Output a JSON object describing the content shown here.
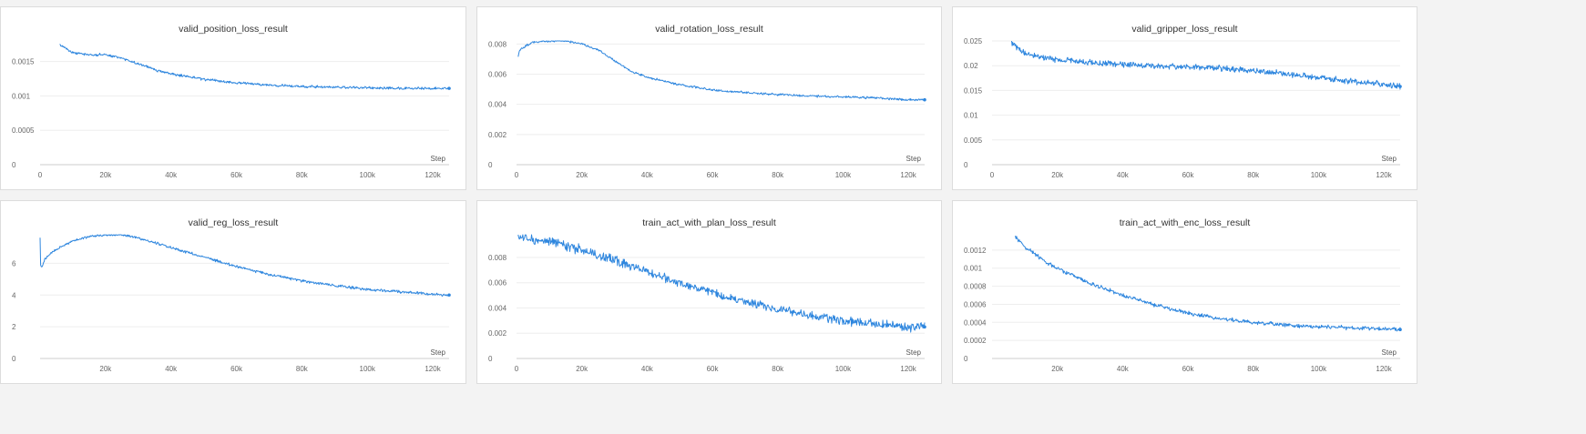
{
  "colors": {
    "line": "#2e86de",
    "grid": "#eeeeee",
    "axis": "#cccccc"
  },
  "chart_data": [
    {
      "type": "line",
      "title": "valid_position_loss_result",
      "xlabel": "Step",
      "xlim": [
        0,
        125000
      ],
      "ylim": [
        0,
        0.0018
      ],
      "xticks": [
        0,
        20000,
        40000,
        60000,
        80000,
        100000,
        120000
      ],
      "xtick_labels": [
        "0",
        "20k",
        "40k",
        "60k",
        "80k",
        "100k",
        "120k"
      ],
      "yticks": [
        0,
        0.0005,
        0.001,
        0.0015
      ],
      "ytick_labels": [
        "0",
        "0.0005",
        "0.001",
        "0.0015"
      ],
      "grid": true,
      "x": [
        6000,
        10000,
        15000,
        20000,
        25000,
        30000,
        35000,
        40000,
        50000,
        60000,
        70000,
        80000,
        90000,
        100000,
        110000,
        120000,
        125000
      ],
      "y": [
        0.00175,
        0.00163,
        0.0016,
        0.0016,
        0.00155,
        0.00147,
        0.00138,
        0.00132,
        0.00124,
        0.00119,
        0.00116,
        0.00114,
        0.00113,
        0.00112,
        0.00111,
        0.00111,
        0.00111
      ],
      "noise": 1.5e-05
    },
    {
      "type": "line",
      "title": "valid_rotation_loss_result",
      "xlabel": "Step",
      "xlim": [
        0,
        125000
      ],
      "ylim": [
        0,
        0.0082
      ],
      "xticks": [
        0,
        20000,
        40000,
        60000,
        80000,
        100000,
        120000
      ],
      "xtick_labels": [
        "0",
        "20k",
        "40k",
        "60k",
        "80k",
        "100k",
        "120k"
      ],
      "yticks": [
        0,
        0.002,
        0.004,
        0.006,
        0.008
      ],
      "ytick_labels": [
        "0",
        "0.002",
        "0.004",
        "0.006",
        "0.008"
      ],
      "grid": true,
      "x": [
        500,
        1000,
        3000,
        5000,
        10000,
        15000,
        20000,
        25000,
        30000,
        35000,
        40000,
        50000,
        60000,
        70000,
        80000,
        90000,
        100000,
        110000,
        120000,
        125000
      ],
      "y": [
        0.0072,
        0.0076,
        0.0079,
        0.0081,
        0.0082,
        0.0082,
        0.008,
        0.0076,
        0.0069,
        0.0062,
        0.0058,
        0.0053,
        0.00495,
        0.00478,
        0.00465,
        0.00455,
        0.00448,
        0.00443,
        0.0043,
        0.0043
      ],
      "noise": 6e-05
    },
    {
      "type": "line",
      "title": "valid_gripper_loss_result",
      "xlabel": "Step",
      "xlim": [
        0,
        125000
      ],
      "ylim": [
        0,
        0.025
      ],
      "xticks": [
        0,
        20000,
        40000,
        60000,
        80000,
        100000,
        120000
      ],
      "xtick_labels": [
        "0",
        "20k",
        "40k",
        "60k",
        "80k",
        "100k",
        "120k"
      ],
      "yticks": [
        0,
        0.005,
        0.01,
        0.015,
        0.02,
        0.025
      ],
      "ytick_labels": [
        "0",
        "0.005",
        "0.01",
        "0.015",
        "0.02",
        "0.025"
      ],
      "grid": true,
      "x": [
        6000,
        8000,
        10000,
        15000,
        20000,
        30000,
        40000,
        50000,
        60000,
        70000,
        80000,
        90000,
        100000,
        110000,
        120000,
        125000
      ],
      "y": [
        0.0248,
        0.0235,
        0.0225,
        0.0218,
        0.0212,
        0.0207,
        0.0203,
        0.02,
        0.0198,
        0.0195,
        0.019,
        0.0183,
        0.0176,
        0.0168,
        0.0162,
        0.0158
      ],
      "noise": 0.0005
    },
    {
      "type": "line",
      "title": "valid_reg_loss_result",
      "xlabel": "Step",
      "xlim": [
        0,
        125000
      ],
      "ylim": [
        0,
        7.8
      ],
      "xticks": [
        20000,
        40000,
        60000,
        80000,
        100000,
        120000
      ],
      "xtick_labels": [
        "20k",
        "40k",
        "60k",
        "80k",
        "100k",
        "120k"
      ],
      "yticks": [
        0,
        2,
        4,
        6
      ],
      "ytick_labels": [
        "0",
        "2",
        "4",
        "6"
      ],
      "grid": true,
      "x": [
        0,
        200,
        500,
        1500,
        3000,
        6000,
        10000,
        15000,
        20000,
        25000,
        30000,
        40000,
        50000,
        60000,
        70000,
        80000,
        90000,
        100000,
        110000,
        120000,
        125000
      ],
      "y": [
        7.6,
        5.8,
        5.7,
        6.3,
        6.6,
        7.0,
        7.4,
        7.7,
        7.8,
        7.8,
        7.6,
        7.0,
        6.4,
        5.8,
        5.3,
        4.9,
        4.6,
        4.35,
        4.2,
        4.05,
        4.0
      ],
      "noise": 0.07
    },
    {
      "type": "line",
      "title": "train_act_with_plan_loss_result",
      "xlabel": "Step",
      "xlim": [
        0,
        125000
      ],
      "ylim": [
        0,
        0.0098
      ],
      "xticks": [
        0,
        20000,
        40000,
        60000,
        80000,
        100000,
        120000
      ],
      "xtick_labels": [
        "0",
        "20k",
        "40k",
        "60k",
        "80k",
        "100k",
        "120k"
      ],
      "yticks": [
        0,
        0.002,
        0.004,
        0.006,
        0.008
      ],
      "ytick_labels": [
        "0",
        "0.002",
        "0.004",
        "0.006",
        "0.008"
      ],
      "grid": true,
      "x": [
        500,
        5000,
        10000,
        20000,
        30000,
        40000,
        50000,
        60000,
        70000,
        80000,
        90000,
        100000,
        110000,
        120000,
        125000
      ],
      "y": [
        0.0097,
        0.0095,
        0.0092,
        0.0086,
        0.0078,
        0.0069,
        0.006,
        0.0052,
        0.0045,
        0.0039,
        0.0034,
        0.003,
        0.0027,
        0.0025,
        0.0025
      ],
      "noise": 0.0003
    },
    {
      "type": "line",
      "title": "train_act_with_enc_loss_result",
      "xlabel": "Step",
      "xlim": [
        0,
        125000
      ],
      "ylim": [
        0,
        0.00137
      ],
      "xticks": [
        20000,
        40000,
        60000,
        80000,
        100000,
        120000
      ],
      "xtick_labels": [
        "20k",
        "40k",
        "60k",
        "80k",
        "100k",
        "120k"
      ],
      "yticks": [
        0,
        0.0002,
        0.0004,
        0.0006,
        0.0008,
        0.001,
        0.0012
      ],
      "ytick_labels": [
        "0",
        "0.0002",
        "0.0004",
        "0.0006",
        "0.0008",
        "0.001",
        "0.0012"
      ],
      "grid": true,
      "x": [
        7000,
        10000,
        15000,
        20000,
        25000,
        30000,
        40000,
        50000,
        60000,
        70000,
        80000,
        90000,
        100000,
        110000,
        120000,
        125000
      ],
      "y": [
        0.00135,
        0.00124,
        0.0011,
        0.001,
        0.00092,
        0.00083,
        0.0007,
        0.00059,
        0.0005,
        0.00044,
        0.0004,
        0.00037,
        0.00035,
        0.00034,
        0.00033,
        0.00032
      ],
      "noise": 1.8e-05
    }
  ]
}
